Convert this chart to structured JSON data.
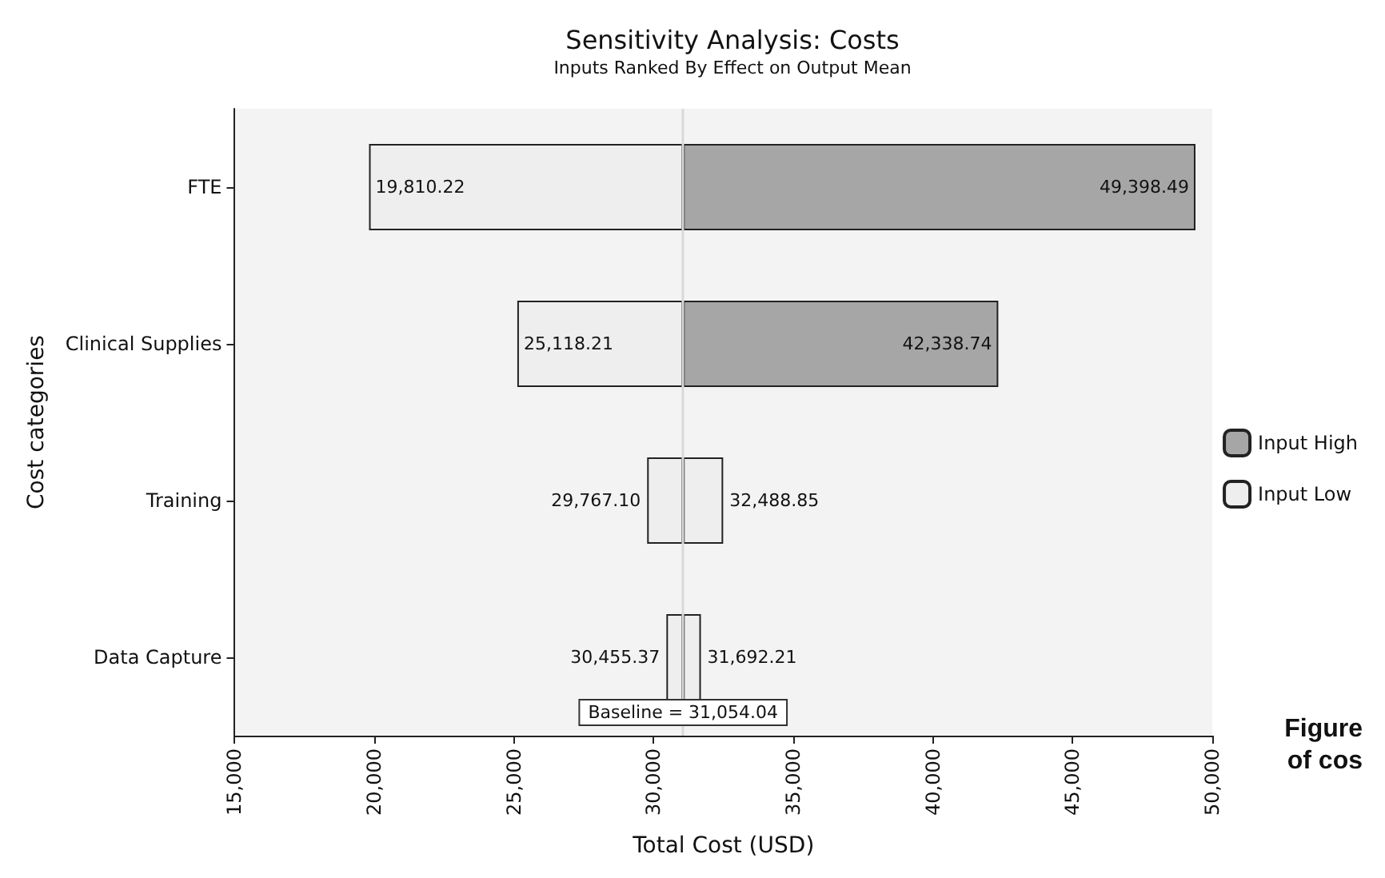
{
  "chart_data": {
    "type": "bar",
    "orientation": "horizontal",
    "title": "Sensitivity Analysis: Costs",
    "subtitle": "Inputs Ranked By Effect on Output Mean",
    "xlabel": "Total Cost (USD)",
    "ylabel": "Cost categories",
    "categories": [
      "FTE",
      "Clinical Supplies",
      "Training",
      "Data Capture"
    ],
    "series": [
      {
        "name": "Input High",
        "color": "#a6a6a6",
        "colors": [
          "#a6a6a6",
          "#a6a6a6",
          "#eeeeee",
          "#eeeeee"
        ],
        "base": [
          31054.04,
          31054.04,
          31054.04,
          31054.04
        ],
        "values": [
          18344.45,
          11284.7,
          1434.81,
          638.17
        ]
      },
      {
        "name": "Input Low",
        "color": "#eeeeee",
        "base": [
          19810.22,
          25118.21,
          29767.1,
          30455.37
        ],
        "values": [
          11243.82,
          5935.83,
          1286.94,
          598.67
        ]
      }
    ],
    "xlim": [
      15000,
      50000
    ],
    "xticks": [
      {
        "value": 15000,
        "label": "15,000"
      },
      {
        "value": 20000,
        "label": "20,000"
      },
      {
        "value": 25000,
        "label": "25,000"
      },
      {
        "value": 30000,
        "label": "30,000"
      },
      {
        "value": 35000,
        "label": "35,000"
      },
      {
        "value": 40000,
        "label": "40,000"
      },
      {
        "value": 45000,
        "label": "45,000"
      },
      {
        "value": 50000,
        "label": "50,000"
      }
    ],
    "ref_lines": [
      {
        "axis": "x",
        "value": 31054.04,
        "label": "Baseline = 31,054.04",
        "color": "#d9d9d9"
      }
    ],
    "legend": "right",
    "grid": false,
    "annotations": [
      {
        "text": "19,810.22",
        "x": 19810.22,
        "y": "FTE"
      },
      {
        "text": "49,398.49",
        "x": 49398.49,
        "y": "FTE"
      },
      {
        "text": "25,118.21",
        "x": 25118.21,
        "y": "Clinical Supplies"
      },
      {
        "text": "42,338.74",
        "x": 42338.74,
        "y": "Clinical Supplies"
      },
      {
        "text": "29,767.10",
        "x": 29767.1,
        "y": "Training"
      },
      {
        "text": "32,488.85",
        "x": 32488.85,
        "y": "Training"
      },
      {
        "text": "30,455.37",
        "x": 30455.37,
        "y": "Data Capture"
      },
      {
        "text": "31,692.21",
        "x": 31692.21,
        "y": "Data Capture"
      },
      "Figure",
      "of cos"
    ]
  }
}
